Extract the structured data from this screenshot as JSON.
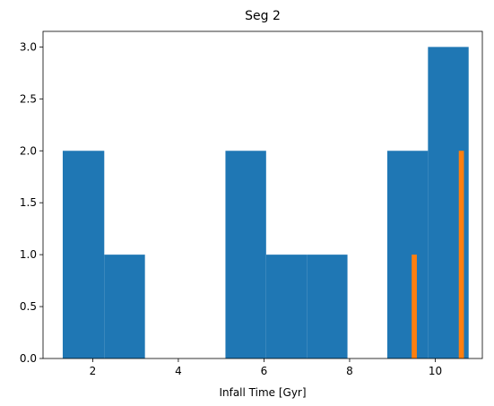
{
  "chart_data": {
    "type": "bar",
    "title": "Seg 2",
    "xlabel": "Infall Time [Gyr]",
    "ylabel": "",
    "xlim": [
      0.84,
      11.1
    ],
    "ylim": [
      0,
      3.15
    ],
    "x_ticks": [
      2,
      4,
      6,
      8,
      10
    ],
    "x_tick_labels": [
      "2",
      "4",
      "6",
      "8",
      "10"
    ],
    "y_ticks": [
      0.0,
      0.5,
      1.0,
      1.5,
      2.0,
      2.5,
      3.0
    ],
    "y_tick_labels": [
      "0.0",
      "0.5",
      "1.0",
      "1.5",
      "2.0",
      "2.5",
      "3.0"
    ],
    "grid": false,
    "series": [
      {
        "color": "#1f77b4",
        "bins": [
          {
            "x0": 1.3,
            "x1": 2.27,
            "count": 2
          },
          {
            "x0": 2.27,
            "x1": 3.22,
            "count": 1
          },
          {
            "x0": 3.22,
            "x1": 4.16,
            "count": 0
          },
          {
            "x0": 4.16,
            "x1": 5.1,
            "count": 0
          },
          {
            "x0": 5.1,
            "x1": 6.05,
            "count": 2
          },
          {
            "x0": 6.05,
            "x1": 7.0,
            "count": 1
          },
          {
            "x0": 7.0,
            "x1": 7.95,
            "count": 1
          },
          {
            "x0": 7.95,
            "x1": 8.88,
            "count": 0
          },
          {
            "x0": 8.88,
            "x1": 9.83,
            "count": 2
          },
          {
            "x0": 9.83,
            "x1": 10.78,
            "count": 3
          }
        ]
      },
      {
        "color": "#ff7f0e",
        "bins": [
          {
            "x0": 9.45,
            "x1": 9.57,
            "count": 1
          },
          {
            "x0": 10.55,
            "x1": 10.67,
            "count": 2
          }
        ]
      }
    ]
  }
}
